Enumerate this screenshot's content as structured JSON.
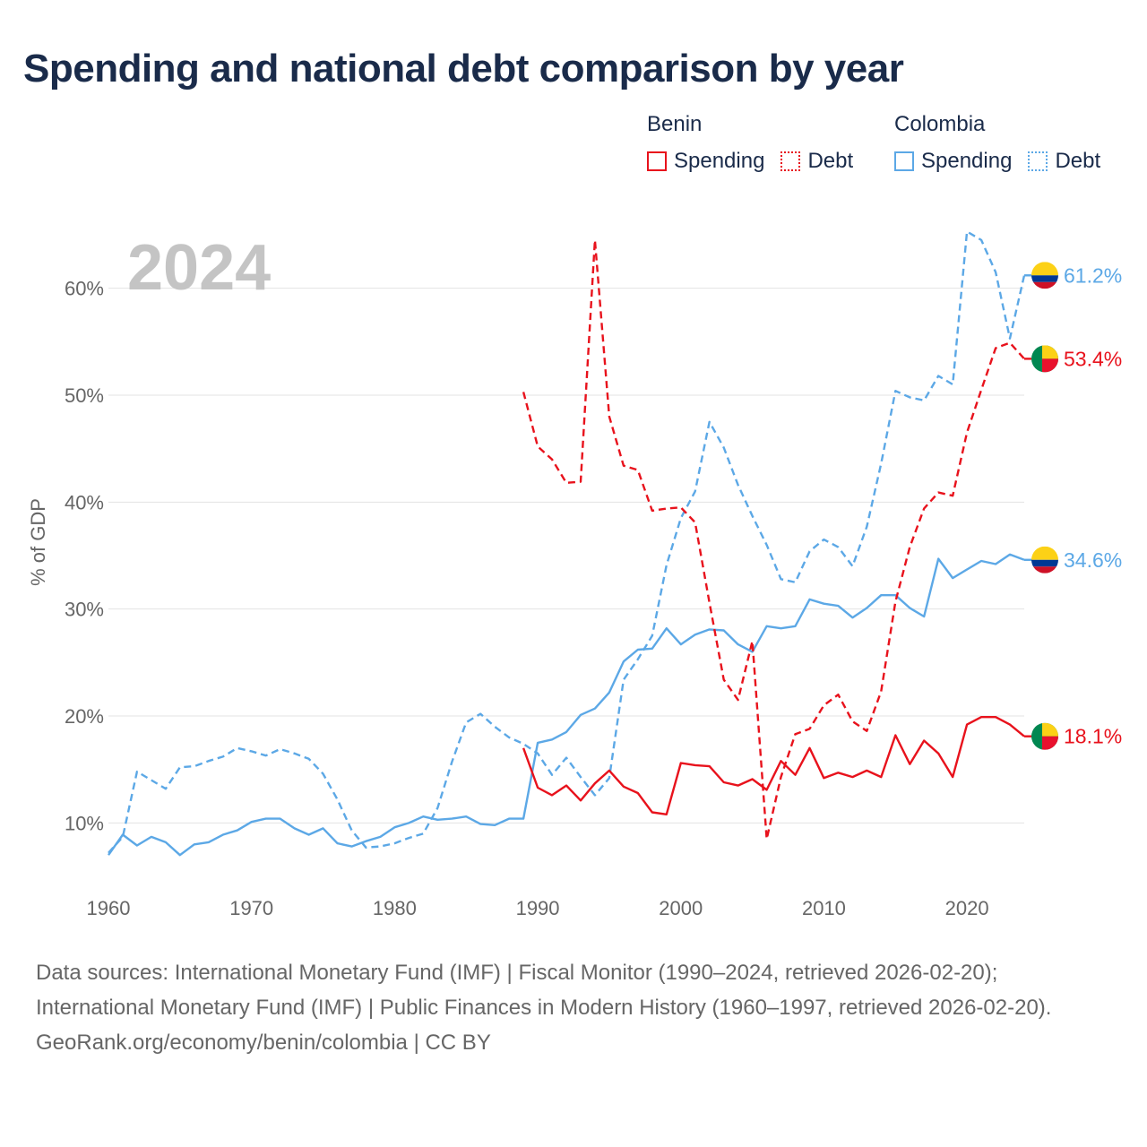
{
  "title": "Spending and national debt comparison by year",
  "legend": {
    "groups": [
      {
        "name": "Benin",
        "color": "#e8121c",
        "items": [
          {
            "label": "Spending",
            "style": "solid"
          },
          {
            "label": "Debt",
            "style": "dotted"
          }
        ]
      },
      {
        "name": "Colombia",
        "color": "#5ca8e6",
        "items": [
          {
            "label": "Spending",
            "style": "solid"
          },
          {
            "label": "Debt",
            "style": "dotted"
          }
        ]
      }
    ]
  },
  "chart_data": {
    "type": "line",
    "year_label": "2024",
    "ylabel": "% of GDP",
    "xlim": [
      1960,
      2024
    ],
    "ylim": [
      4,
      66
    ],
    "x_ticks": [
      1960,
      1970,
      1980,
      1990,
      2000,
      2010,
      2020
    ],
    "y_ticks": [
      10,
      20,
      30,
      40,
      50,
      60
    ],
    "y_tick_labels": [
      "10%",
      "20%",
      "30%",
      "40%",
      "50%",
      "60%"
    ],
    "series": [
      {
        "name": "Colombia Spending",
        "country": "Colombia",
        "metric": "Spending",
        "color": "#5ca8e6",
        "dashed": false,
        "x": [
          1960,
          1961,
          1962,
          1963,
          1964,
          1965,
          1966,
          1967,
          1968,
          1969,
          1970,
          1971,
          1972,
          1973,
          1974,
          1975,
          1976,
          1977,
          1978,
          1979,
          1980,
          1981,
          1982,
          1983,
          1984,
          1985,
          1986,
          1987,
          1988,
          1989,
          1990,
          1991,
          1992,
          1993,
          1994,
          1995,
          1996,
          1997,
          1998,
          1999,
          2000,
          2001,
          2002,
          2003,
          2004,
          2005,
          2006,
          2007,
          2008,
          2009,
          2010,
          2011,
          2012,
          2013,
          2014,
          2015,
          2016,
          2017,
          2018,
          2019,
          2020,
          2021,
          2022,
          2023,
          2024
        ],
        "y": [
          7.0,
          8.9,
          7.9,
          8.7,
          8.2,
          7.0,
          8.0,
          8.2,
          8.9,
          9.3,
          10.1,
          10.4,
          10.4,
          9.5,
          8.9,
          9.5,
          8.1,
          7.8,
          8.3,
          8.7,
          9.6,
          10.0,
          10.6,
          10.3,
          10.4,
          10.6,
          9.9,
          9.8,
          10.4,
          10.4,
          17.5,
          17.8,
          18.5,
          20.1,
          20.7,
          22.2,
          25.1,
          26.2,
          26.3,
          28.2,
          26.7,
          27.6,
          28.1,
          28.0,
          26.7,
          26.0,
          28.4,
          28.2,
          28.4,
          30.9,
          30.5,
          30.3,
          29.2,
          30.1,
          31.3,
          31.3,
          30.1,
          29.3,
          34.7,
          32.9,
          33.7,
          34.5,
          34.2,
          35.1,
          34.6
        ],
        "end_label": "34.6%"
      },
      {
        "name": "Colombia Debt",
        "country": "Colombia",
        "metric": "Debt",
        "color": "#5ca8e6",
        "dashed": true,
        "x": [
          1960,
          1961,
          1962,
          1963,
          1964,
          1965,
          1966,
          1967,
          1968,
          1969,
          1970,
          1971,
          1972,
          1973,
          1974,
          1975,
          1976,
          1977,
          1978,
          1979,
          1980,
          1981,
          1982,
          1983,
          1984,
          1985,
          1986,
          1987,
          1988,
          1989,
          1990,
          1991,
          1992,
          1993,
          1994,
          1995,
          1996,
          1997,
          1998,
          1999,
          2000,
          2001,
          2002,
          2003,
          2004,
          2005,
          2006,
          2007,
          2008,
          2009,
          2010,
          2011,
          2012,
          2013,
          2014,
          2015,
          2016,
          2017,
          2018,
          2019,
          2020,
          2021,
          2022,
          2023,
          2024
        ],
        "y": [
          7.2,
          8.7,
          14.8,
          14.0,
          13.2,
          15.2,
          15.3,
          15.8,
          16.2,
          17.0,
          16.7,
          16.3,
          16.9,
          16.5,
          16.0,
          14.6,
          12.2,
          9.3,
          7.7,
          7.8,
          8.1,
          8.6,
          9.0,
          11.4,
          15.7,
          19.4,
          20.2,
          19.0,
          18.0,
          17.4,
          16.5,
          14.5,
          16.1,
          14.3,
          12.6,
          14.2,
          23.4,
          25.3,
          27.5,
          34.1,
          38.5,
          41.0,
          47.5,
          45.1,
          41.6,
          38.7,
          36.0,
          32.8,
          32.5,
          35.4,
          36.5,
          35.8,
          34.0,
          37.7,
          43.6,
          50.4,
          49.8,
          49.5,
          51.8,
          51.0,
          65.3,
          64.5,
          61.5,
          55.3,
          61.2
        ],
        "end_label": "61.2%"
      },
      {
        "name": "Benin Spending",
        "country": "Benin",
        "metric": "Spending",
        "color": "#e8121c",
        "dashed": false,
        "x": [
          1989,
          1990,
          1991,
          1992,
          1993,
          1994,
          1995,
          1996,
          1997,
          1998,
          1999,
          2000,
          2001,
          2002,
          2003,
          2004,
          2005,
          2006,
          2007,
          2008,
          2009,
          2010,
          2011,
          2012,
          2013,
          2014,
          2015,
          2016,
          2017,
          2018,
          2019,
          2020,
          2021,
          2022,
          2023,
          2024
        ],
        "y": [
          17.0,
          13.3,
          12.6,
          13.5,
          12.1,
          13.7,
          14.9,
          13.4,
          12.8,
          11.0,
          10.8,
          15.6,
          15.4,
          15.3,
          13.8,
          13.5,
          14.1,
          13.1,
          15.8,
          14.5,
          17.0,
          14.2,
          14.7,
          14.3,
          14.9,
          14.3,
          18.2,
          15.5,
          17.7,
          16.5,
          14.3,
          19.2,
          19.9,
          19.9,
          19.2,
          18.1
        ],
        "end_label": "18.1%"
      },
      {
        "name": "Benin Debt",
        "country": "Benin",
        "metric": "Debt",
        "color": "#e8121c",
        "dashed": true,
        "x": [
          1989,
          1990,
          1991,
          1992,
          1993,
          1994,
          1995,
          1996,
          1997,
          1998,
          1999,
          2000,
          2001,
          2002,
          2003,
          2004,
          2005,
          2006,
          2007,
          2008,
          2009,
          2010,
          2011,
          2012,
          2013,
          2014,
          2015,
          2016,
          2017,
          2018,
          2019,
          2020,
          2021,
          2022,
          2023,
          2024
        ],
        "y": [
          50.3,
          45.2,
          44.0,
          41.8,
          41.9,
          64.5,
          48.0,
          43.4,
          43.0,
          39.2,
          39.4,
          39.5,
          38.1,
          30.6,
          23.4,
          21.5,
          27.0,
          8.5,
          14.3,
          18.3,
          18.8,
          21.0,
          22.0,
          19.5,
          18.6,
          22.3,
          30.7,
          35.8,
          39.4,
          40.9,
          40.6,
          46.5,
          50.5,
          54.4,
          54.9,
          53.4
        ],
        "end_label": "53.4%"
      }
    ]
  },
  "footer": {
    "sources": "Data sources: International Monetary Fund (IMF) | Fiscal Monitor (1990–2024, retrieved 2026-02-20); International Monetary Fund (IMF) | Public Finances in Modern History (1960–1997, retrieved 2026-02-20).",
    "credit": "GeoRank.org/economy/benin/colombia | CC BY"
  }
}
